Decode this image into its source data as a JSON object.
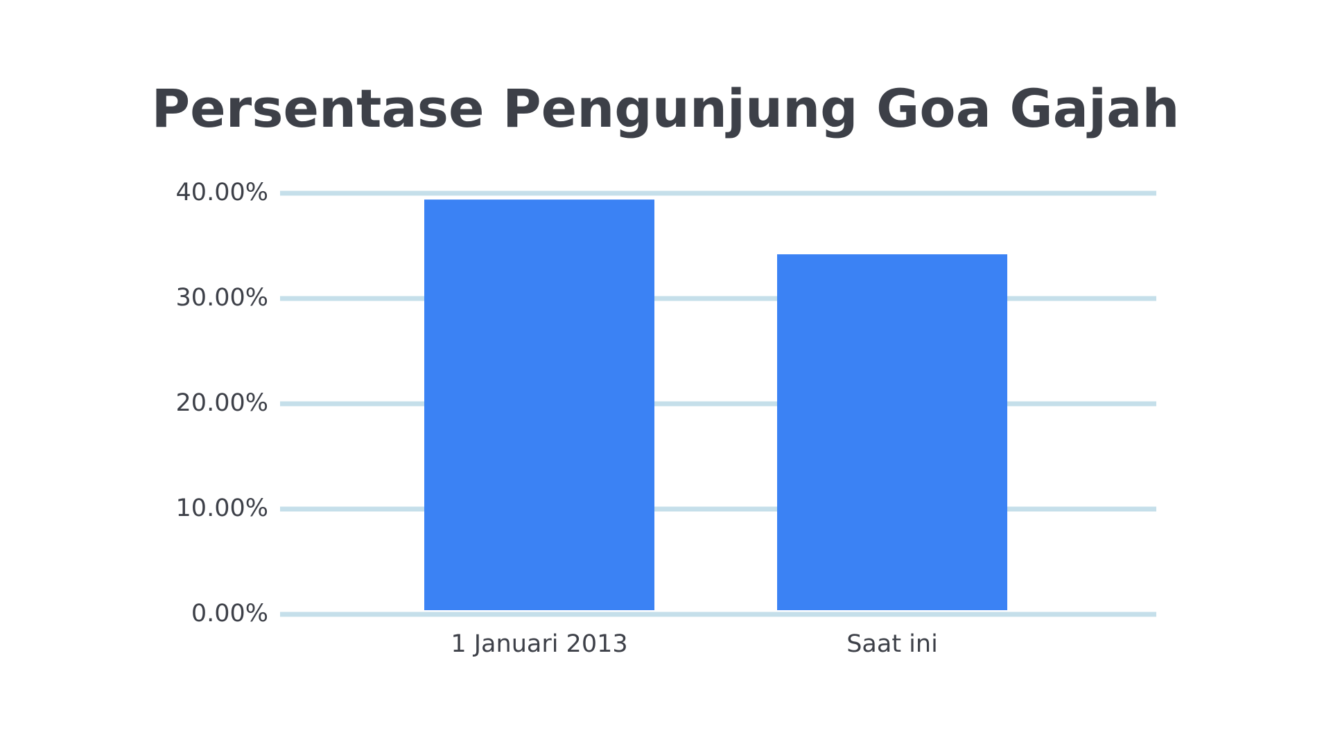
{
  "chart_data": {
    "type": "bar",
    "title": "Persentase Pengunjung Goa Gajah",
    "categories": [
      "1 Januari 2013",
      "Saat ini"
    ],
    "values": [
      39.4,
      34.2
    ],
    "color": "#3b82f4",
    "ylim": [
      0,
      40
    ],
    "yticks": [
      {
        "value": 0,
        "label": "0.00%"
      },
      {
        "value": 10,
        "label": "10.00%"
      },
      {
        "value": 20,
        "label": "20.00%"
      },
      {
        "value": 30,
        "label": "30.00%"
      },
      {
        "value": 40,
        "label": "40.00%"
      }
    ],
    "grid": true
  }
}
